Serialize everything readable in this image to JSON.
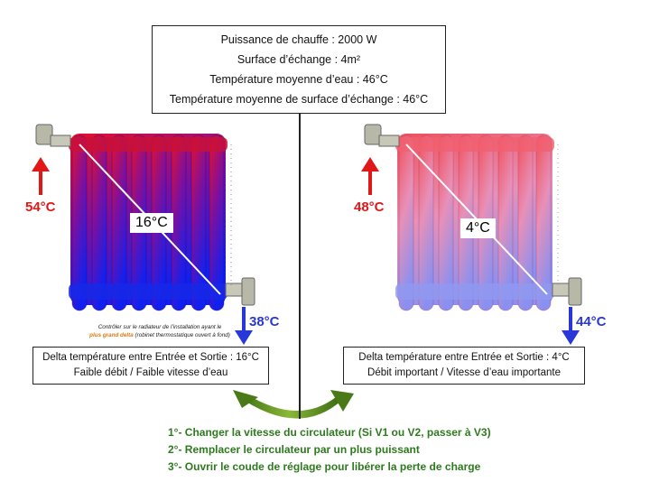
{
  "info": {
    "power": "Puissance de chauffe : 2000 W",
    "surface": "Surface d’échange : 4m²",
    "water_temp": "Température moyenne d’eau : 46°C",
    "surface_temp": "Température moyenne de surface d’échange : 46°C"
  },
  "left": {
    "inlet_temp": "54°C",
    "outlet_temp": "38°C",
    "delta": "16°C",
    "note_line1": "Contrôler sur le radiateur de l’installation ayant le",
    "note_highlight": "plus grand delta",
    "note_rest": " (robinet thermostatique ouvert à fond)",
    "box_line1": "Delta température entre Entrée et Sortie : 16°C",
    "box_line2": "Faible débit / Faible vitesse d’eau"
  },
  "right": {
    "inlet_temp": "48°C",
    "outlet_temp": "44°C",
    "delta": "4°C",
    "box_line1": "Delta température entre Entrée et Sortie : 4°C",
    "box_line2": "Débit important  / Vitesse d’eau importante"
  },
  "actions": [
    "1°- Changer la vitesse du circulateur (Si V1 ou V2, passer à V3)",
    "2°- Remplacer le circulateur par un plus puissant",
    "3°- Ouvrir le coude de réglage pour libérer la perte de charge"
  ],
  "colors": {
    "hot": "#e01818",
    "cold": "#2838d8",
    "action_text": "#2e7a1e",
    "curve_arrow": "#4a7a18"
  }
}
